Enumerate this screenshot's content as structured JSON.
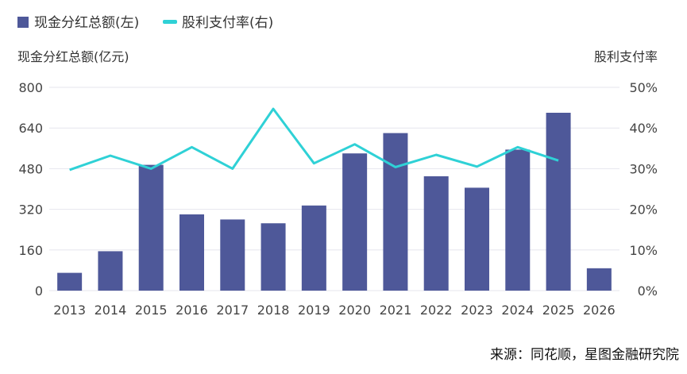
{
  "chart_data": {
    "type": "bar+line",
    "categories": [
      "2013",
      "2014",
      "2015",
      "2016",
      "2017",
      "2018",
      "2019",
      "2020",
      "2021",
      "2022",
      "2023",
      "2024",
      "2025",
      "2026"
    ],
    "series": [
      {
        "name": "现金分红总额(左)",
        "type": "bar",
        "axis": "left",
        "color": "#4e5899",
        "values": [
          70,
          155,
          495,
          300,
          280,
          265,
          335,
          540,
          620,
          450,
          405,
          555,
          700,
          88
        ]
      },
      {
        "name": "股利支付率(右)",
        "type": "line",
        "axis": "right",
        "color": "#2fd1d6",
        "values": [
          29.7,
          33.2,
          30.0,
          35.3,
          30.0,
          44.7,
          31.3,
          36.0,
          30.4,
          33.4,
          30.5,
          35.3,
          32.0,
          null
        ]
      }
    ],
    "y_left": {
      "label": "现金分红总额(亿元)",
      "range": [
        0,
        800
      ],
      "ticks": [
        "0",
        "160",
        "320",
        "480",
        "640",
        "800"
      ]
    },
    "y_right": {
      "label": "股利支付率",
      "range": [
        0,
        50
      ],
      "ticks": [
        "0%",
        "10%",
        "20%",
        "30%",
        "40%",
        "50%"
      ]
    },
    "grid": true,
    "legend_position": "top-left"
  },
  "source": "来源：同花顺，星图金融研究院"
}
